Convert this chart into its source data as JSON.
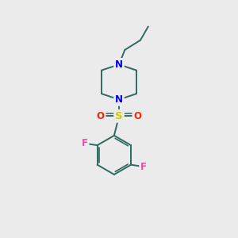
{
  "background_color": "#ebebeb",
  "bond_color": "#2d6b5e",
  "N_color": "#0000ee",
  "S_color": "#cccc00",
  "O_color": "#ff2200",
  "F_color": "#ff44aa",
  "bond_width": 1.4,
  "font_size_atom": 8.5,
  "xlim": [
    0,
    10
  ],
  "ylim": [
    0,
    12
  ],
  "figsize": [
    3.0,
    3.0
  ],
  "dpi": 100
}
